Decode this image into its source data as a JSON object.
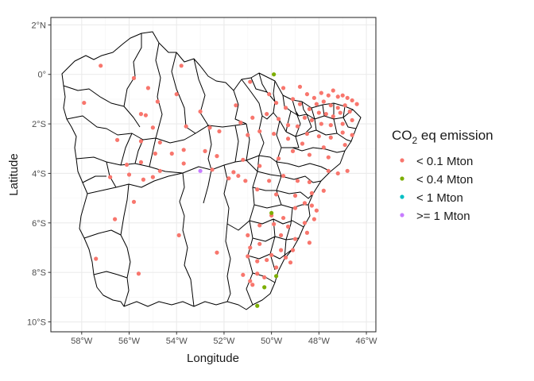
{
  "chart_data": {
    "type": "scatter",
    "title": "",
    "xlabel": "Longitude",
    "ylabel": "Latitude",
    "xlim": [
      -59.3,
      -45.6
    ],
    "ylim": [
      -10.4,
      2.3
    ],
    "xticks": [
      -58,
      -56,
      -54,
      -52,
      -50,
      -48,
      -46
    ],
    "xtick_labels": [
      "58°W",
      "56°W",
      "54°W",
      "52°W",
      "50°W",
      "48°W",
      "46°W"
    ],
    "yticks": [
      2,
      0,
      -2,
      -4,
      -6,
      -8,
      -10
    ],
    "ytick_labels": [
      "2°N",
      "0°",
      "2°S",
      "4°S",
      "6°S",
      "8°S",
      "10°S"
    ],
    "grid": true,
    "legend": {
      "title_main": "CO",
      "title_sub": "2",
      "title_rest": " eq emission",
      "placement": "right"
    },
    "series": [
      {
        "name": "< 0.1 Mton",
        "color": "#F8766D",
        "points": [
          [
            -57.2,
            0.35
          ],
          [
            -55.8,
            -0.15
          ],
          [
            -53.8,
            0.35
          ],
          [
            -55.2,
            -0.55
          ],
          [
            -54.0,
            -0.8
          ],
          [
            -54.8,
            -1.1
          ],
          [
            -53.0,
            -1.5
          ],
          [
            -55.5,
            -1.6
          ],
          [
            -57.9,
            -1.15
          ],
          [
            -55.3,
            -1.65
          ],
          [
            -50.9,
            -0.3
          ],
          [
            -51.5,
            -1.25
          ],
          [
            -50.8,
            -1.75
          ],
          [
            -51.3,
            -1.95
          ],
          [
            -50.2,
            -1.6
          ],
          [
            -50.1,
            -0.8
          ],
          [
            -49.5,
            -0.55
          ],
          [
            -48.8,
            -0.5
          ],
          [
            -48.5,
            -0.8
          ],
          [
            -48.2,
            -0.95
          ],
          [
            -47.9,
            -0.75
          ],
          [
            -47.6,
            -0.85
          ],
          [
            -47.4,
            -0.65
          ],
          [
            -47.2,
            -0.9
          ],
          [
            -47.0,
            -0.85
          ],
          [
            -46.8,
            -0.95
          ],
          [
            -46.6,
            -1.05
          ],
          [
            -46.4,
            -1.2
          ],
          [
            -48.1,
            -1.2
          ],
          [
            -47.8,
            -1.1
          ],
          [
            -47.5,
            -1.25
          ],
          [
            -47.2,
            -1.35
          ],
          [
            -46.9,
            -1.25
          ],
          [
            -48.4,
            -1.4
          ],
          [
            -48.0,
            -1.55
          ],
          [
            -47.7,
            -1.6
          ],
          [
            -47.4,
            -1.7
          ],
          [
            -47.1,
            -1.55
          ],
          [
            -46.7,
            -1.5
          ],
          [
            -48.6,
            -1.75
          ],
          [
            -48.3,
            -1.85
          ],
          [
            -47.9,
            -2.0
          ],
          [
            -47.5,
            -2.05
          ],
          [
            -47.0,
            -2.0
          ],
          [
            -46.6,
            -1.85
          ],
          [
            -48.8,
            -1.2
          ],
          [
            -49.1,
            -1.0
          ],
          [
            -49.4,
            -1.35
          ],
          [
            -49.8,
            -1.15
          ],
          [
            -49.7,
            -1.8
          ],
          [
            -49.3,
            -2.05
          ],
          [
            -48.9,
            -2.1
          ],
          [
            -48.5,
            -2.4
          ],
          [
            -48.0,
            -2.5
          ],
          [
            -47.5,
            -2.55
          ],
          [
            -47.0,
            -2.35
          ],
          [
            -46.6,
            -2.45
          ],
          [
            -46.9,
            -2.85
          ],
          [
            -47.8,
            -2.95
          ],
          [
            -48.7,
            -2.8
          ],
          [
            -49.3,
            -2.6
          ],
          [
            -49.9,
            -2.4
          ],
          [
            -50.5,
            -2.3
          ],
          [
            -51.0,
            -2.45
          ],
          [
            -49.1,
            -3.1
          ],
          [
            -48.4,
            -3.25
          ],
          [
            -47.6,
            -3.35
          ],
          [
            -49.7,
            -3.4
          ],
          [
            -50.5,
            -3.7
          ],
          [
            -51.2,
            -3.45
          ],
          [
            -52.2,
            -2.3
          ],
          [
            -53.6,
            -2.1
          ],
          [
            -52.6,
            -2.15
          ],
          [
            -55.0,
            -2.15
          ],
          [
            -56.5,
            -2.65
          ],
          [
            -55.5,
            -2.7
          ],
          [
            -54.7,
            -2.75
          ],
          [
            -53.7,
            -3.05
          ],
          [
            -52.8,
            -3.1
          ],
          [
            -52.3,
            -3.3
          ],
          [
            -54.2,
            -3.2
          ],
          [
            -54.9,
            -3.2
          ],
          [
            -55.5,
            -3.55
          ],
          [
            -56.1,
            -3.65
          ],
          [
            -54.7,
            -3.9
          ],
          [
            -53.7,
            -3.6
          ],
          [
            -52.5,
            -3.85
          ],
          [
            -51.6,
            -3.95
          ],
          [
            -51.4,
            -4.1
          ],
          [
            -51.1,
            -4.3
          ],
          [
            -50.1,
            -4.3
          ],
          [
            -49.5,
            -4.1
          ],
          [
            -48.9,
            -4.3
          ],
          [
            -48.4,
            -4.35
          ],
          [
            -47.6,
            -3.9
          ],
          [
            -47.2,
            -4.0
          ],
          [
            -46.8,
            -3.9
          ],
          [
            -51.8,
            -4.2
          ],
          [
            -55.0,
            -4.15
          ],
          [
            -55.4,
            -4.25
          ],
          [
            -56.0,
            -4.05
          ],
          [
            -56.8,
            -4.15
          ],
          [
            -47.8,
            -4.7
          ],
          [
            -48.3,
            -4.8
          ],
          [
            -49.0,
            -4.9
          ],
          [
            -49.8,
            -4.85
          ],
          [
            -50.6,
            -4.65
          ],
          [
            -48.6,
            -5.2
          ],
          [
            -49.0,
            -5.4
          ],
          [
            -48.3,
            -5.3
          ],
          [
            -48.1,
            -5.5
          ],
          [
            -49.5,
            -5.8
          ],
          [
            -50.0,
            -5.7
          ],
          [
            -48.2,
            -5.85
          ],
          [
            -48.6,
            -6.0
          ],
          [
            -49.3,
            -6.15
          ],
          [
            -49.9,
            -6.05
          ],
          [
            -50.5,
            -6.1
          ],
          [
            -51.0,
            -6.5
          ],
          [
            -49.6,
            -6.5
          ],
          [
            -49.0,
            -6.65
          ],
          [
            -48.5,
            -6.4
          ],
          [
            -48.4,
            -6.8
          ],
          [
            -49.1,
            -7.1
          ],
          [
            -49.6,
            -7.1
          ],
          [
            -50.0,
            -7.3
          ],
          [
            -50.5,
            -6.85
          ],
          [
            -50.9,
            -7.0
          ],
          [
            -51.0,
            -7.35
          ],
          [
            -50.6,
            -7.55
          ],
          [
            -50.2,
            -7.5
          ],
          [
            -49.4,
            -7.4
          ],
          [
            -49.2,
            -7.6
          ],
          [
            -49.8,
            -7.8
          ],
          [
            -50.6,
            -8.05
          ],
          [
            -51.2,
            -8.1
          ],
          [
            -50.9,
            -8.35
          ],
          [
            -50.3,
            -8.2
          ],
          [
            -50.8,
            -8.5
          ],
          [
            -52.3,
            -7.2
          ],
          [
            -53.9,
            -6.5
          ],
          [
            -56.6,
            -5.85
          ],
          [
            -55.8,
            -5.15
          ],
          [
            -57.4,
            -7.45
          ],
          [
            -55.6,
            -8.05
          ]
        ]
      },
      {
        "name": "< 0.4 Mton",
        "color": "#7CAE00",
        "points": [
          [
            -49.9,
            0.0
          ],
          [
            -50.0,
            -5.6
          ],
          [
            -49.8,
            -8.15
          ],
          [
            -50.3,
            -8.6
          ],
          [
            -50.6,
            -9.35
          ]
        ]
      },
      {
        "name": "< 1 Mton",
        "color": "#00BFC4",
        "points": []
      },
      {
        "name": ">= 1 Mton",
        "color": "#C77CFF",
        "points": [
          [
            -53.0,
            -3.9
          ]
        ]
      }
    ]
  }
}
